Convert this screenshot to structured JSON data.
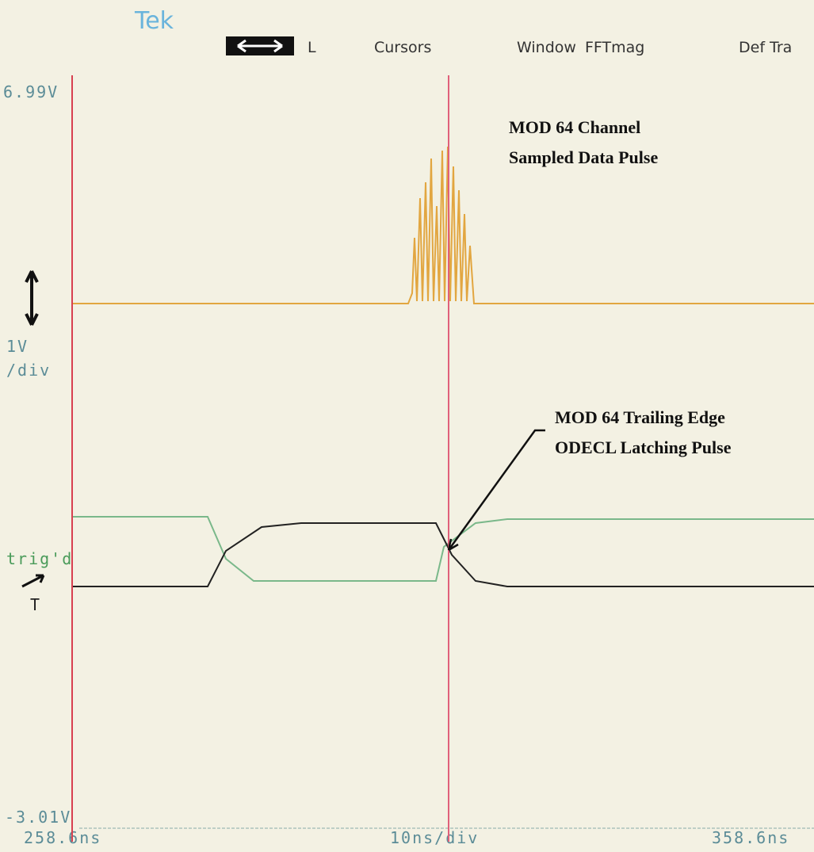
{
  "header": {
    "brand": "Tek",
    "menu": [
      "L",
      "Cursors",
      "Window",
      "FFTmag",
      "Def Tra"
    ]
  },
  "scale": {
    "top": "6.99V",
    "volts_per_div": [
      "1V",
      "/div"
    ],
    "trigger": [
      "trig'd",
      "T"
    ],
    "bottom": "-3.01V"
  },
  "time": {
    "start": "258.6ns",
    "per_div": "10ns/div",
    "end": "358.6ns"
  },
  "annotations": [
    {
      "lines": [
        "MOD 64 Channel",
        "Sampled Data Pulse"
      ]
    },
    {
      "lines": [
        "MOD 64 Trailing Edge",
        "ODECL Latching Pulse"
      ]
    }
  ]
}
